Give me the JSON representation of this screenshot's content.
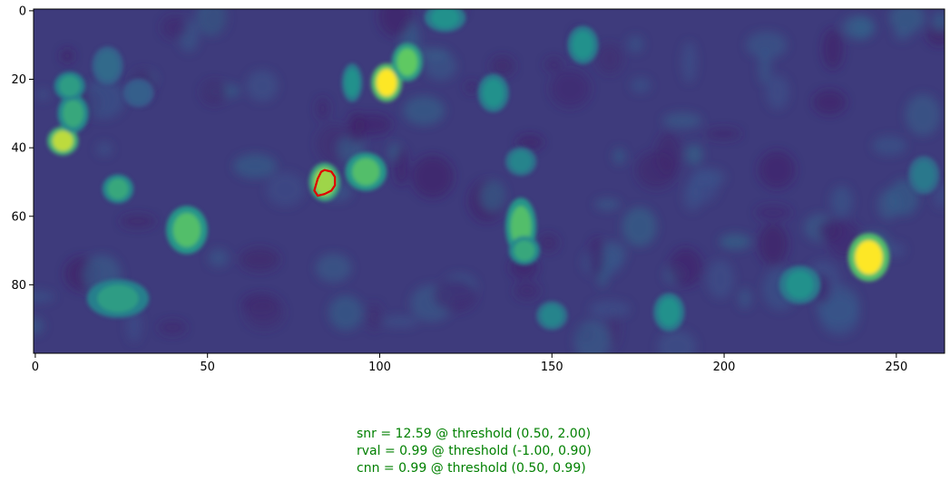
{
  "chart_data": {
    "type": "heatmap",
    "colormap": "viridis",
    "xlim": [
      0,
      264
    ],
    "ylim": [
      100,
      0
    ],
    "xticks": [
      0,
      50,
      100,
      150,
      200,
      250
    ],
    "yticks": [
      0,
      20,
      40,
      60,
      80
    ],
    "background_level": 0.18,
    "bright_spots": [
      {
        "x": 102,
        "y": 21,
        "rx": 3,
        "ry": 4,
        "level": 1.0
      },
      {
        "x": 108,
        "y": 15,
        "rx": 3,
        "ry": 4,
        "level": 0.75
      },
      {
        "x": 8,
        "y": 38,
        "rx": 3,
        "ry": 3,
        "level": 0.9
      },
      {
        "x": 11,
        "y": 30,
        "rx": 3,
        "ry": 4,
        "level": 0.6
      },
      {
        "x": 10,
        "y": 22,
        "rx": 3,
        "ry": 3,
        "level": 0.55
      },
      {
        "x": 84,
        "y": 50,
        "rx": 3,
        "ry": 4,
        "level": 0.85
      },
      {
        "x": 96,
        "y": 47,
        "rx": 4,
        "ry": 4,
        "level": 0.7
      },
      {
        "x": 44,
        "y": 64,
        "rx": 4,
        "ry": 5,
        "level": 0.7
      },
      {
        "x": 24,
        "y": 52,
        "rx": 3,
        "ry": 3,
        "level": 0.6
      },
      {
        "x": 141,
        "y": 63,
        "rx": 3,
        "ry": 6,
        "level": 0.7
      },
      {
        "x": 142,
        "y": 70,
        "rx": 3,
        "ry": 3,
        "level": 0.6
      },
      {
        "x": 242,
        "y": 72,
        "rx": 4,
        "ry": 5,
        "level": 1.0
      },
      {
        "x": 133,
        "y": 24,
        "rx": 3,
        "ry": 4,
        "level": 0.5
      },
      {
        "x": 159,
        "y": 10,
        "rx": 3,
        "ry": 4,
        "level": 0.5
      },
      {
        "x": 92,
        "y": 21,
        "rx": 2,
        "ry": 4,
        "level": 0.5
      },
      {
        "x": 24,
        "y": 84,
        "rx": 6,
        "ry": 4,
        "level": 0.55
      },
      {
        "x": 184,
        "y": 88,
        "rx": 3,
        "ry": 4,
        "level": 0.5
      },
      {
        "x": 222,
        "y": 80,
        "rx": 4,
        "ry": 4,
        "level": 0.5
      },
      {
        "x": 141,
        "y": 44,
        "rx": 3,
        "ry": 3,
        "level": 0.45
      },
      {
        "x": 150,
        "y": 89,
        "rx": 3,
        "ry": 3,
        "level": 0.45
      },
      {
        "x": 119,
        "y": 2,
        "rx": 4,
        "ry": 3,
        "level": 0.5
      },
      {
        "x": 258,
        "y": 48,
        "rx": 3,
        "ry": 4,
        "level": 0.4
      },
      {
        "x": 21,
        "y": 16,
        "rx": 3,
        "ry": 4,
        "level": 0.35
      },
      {
        "x": 30,
        "y": 24,
        "rx": 3,
        "ry": 3,
        "level": 0.3
      }
    ],
    "contour": {
      "color": "#e00000",
      "points": [
        [
          84,
          46.5
        ],
        [
          86,
          47
        ],
        [
          87,
          48.5
        ],
        [
          87,
          51
        ],
        [
          86,
          52.5
        ],
        [
          84,
          53.5
        ],
        [
          82,
          54
        ],
        [
          81,
          52.5
        ],
        [
          82,
          49
        ],
        [
          83,
          47
        ]
      ]
    }
  },
  "annotations": [
    "snr = 12.59 @ threshold (0.50, 2.00)",
    "rval = 0.99 @ threshold (-1.00, 0.90)",
    "cnn = 0.99 @ threshold (0.50, 0.99)"
  ]
}
